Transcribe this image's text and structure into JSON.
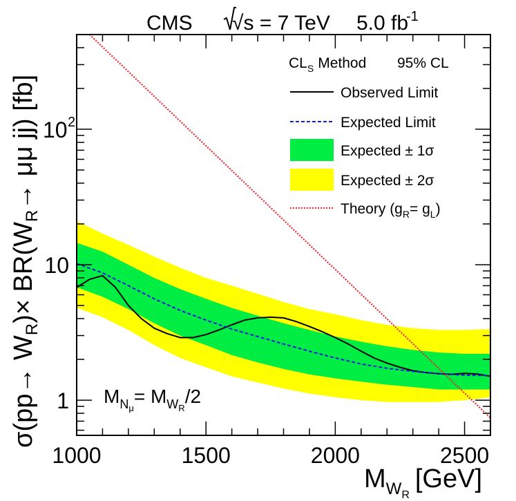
{
  "chart_data": {
    "type": "line",
    "title": {
      "experiment": "CMS",
      "energy_label": "√s = 7 TeV",
      "lumi_value": "5.0 fb",
      "lumi_exp": "-1"
    },
    "method": {
      "cls": "CL",
      "cls_sub": "S",
      "method_word": "Method",
      "cl": "95% CL"
    },
    "annotation": {
      "m": "M",
      "n": "N",
      "mu": "μ",
      "eq": "= M",
      "w": "W",
      "r": "R",
      "tail": "/2"
    },
    "xlabel": {
      "m": "M",
      "w": "W",
      "r": "R",
      "unit": "[GeV]"
    },
    "ylabel": {
      "p1": "σ(pp→ W",
      "s1": "R",
      "p2": ")× BR(W",
      "s2": "R",
      "p3": "→ μμ jj) [fb]"
    },
    "xlim": [
      1000,
      2600
    ],
    "ylim": [
      0.55,
      500
    ],
    "yscale": "log",
    "xticks": [
      1000,
      1500,
      2000,
      2500
    ],
    "yticks": [
      {
        "value": 1,
        "label": "1"
      },
      {
        "value": 10,
        "label": "10"
      },
      {
        "value": 100,
        "label": "10",
        "exp": "2"
      }
    ],
    "legend": [
      {
        "key": "observed",
        "label": "Observed Limit"
      },
      {
        "key": "expected",
        "label": "Expected Limit"
      },
      {
        "key": "band1",
        "label": "Expected ± 1σ"
      },
      {
        "key": "band2",
        "label": "Expected ± 2σ"
      },
      {
        "key": "theory",
        "label": "Theory (g",
        "sub1": "R",
        "mid": "= g",
        "sub2": "L",
        "end": ")"
      }
    ],
    "series": [
      {
        "name": "Observed Limit",
        "color": "#000000",
        "x": [
          1000,
          1050,
          1100,
          1150,
          1200,
          1250,
          1300,
          1350,
          1400,
          1450,
          1500,
          1550,
          1600,
          1650,
          1700,
          1750,
          1800,
          1850,
          1900,
          1950,
          2000,
          2050,
          2100,
          2150,
          2200,
          2250,
          2300,
          2350,
          2400,
          2450,
          2500,
          2550,
          2600
        ],
        "y": [
          6.8,
          7.8,
          8.3,
          6.8,
          5.0,
          4.0,
          3.4,
          3.1,
          2.9,
          2.9,
          3.05,
          3.3,
          3.6,
          3.9,
          4.05,
          4.1,
          4.05,
          3.8,
          3.5,
          3.2,
          2.9,
          2.6,
          2.3,
          2.05,
          1.88,
          1.75,
          1.65,
          1.6,
          1.57,
          1.55,
          1.58,
          1.56,
          1.5
        ]
      },
      {
        "name": "Expected Limit",
        "color": "#1a1adb",
        "x": [
          1000,
          1100,
          1200,
          1300,
          1400,
          1500,
          1600,
          1700,
          1800,
          1900,
          2000,
          2100,
          2200,
          2300,
          2400,
          2500,
          2600
        ],
        "y": [
          10.2,
          8.7,
          7.0,
          5.6,
          4.6,
          3.9,
          3.35,
          2.95,
          2.6,
          2.3,
          2.05,
          1.85,
          1.72,
          1.63,
          1.57,
          1.53,
          1.52
        ]
      },
      {
        "name": "Theory (gR = gL)",
        "color": "#e8262b",
        "x": [
          1050,
          2600
        ],
        "y": [
          500,
          0.74
        ]
      }
    ],
    "bands": [
      {
        "name": "Expected ± 2σ",
        "color": "#ffff00",
        "x": [
          1000,
          1100,
          1200,
          1300,
          1400,
          1500,
          1600,
          1700,
          1800,
          1900,
          2000,
          2100,
          2200,
          2300,
          2400,
          2500,
          2600
        ],
        "lower": [
          4.8,
          4.1,
          3.3,
          2.55,
          2.05,
          1.75,
          1.5,
          1.35,
          1.22,
          1.12,
          1.05,
          1.0,
          0.97,
          0.97,
          0.97,
          1.0,
          1.05
        ],
        "upper": [
          21,
          17,
          14,
          11.5,
          9.5,
          8.0,
          7.0,
          6.1,
          5.3,
          4.7,
          4.3,
          3.9,
          3.6,
          3.4,
          3.3,
          3.3,
          3.35
        ]
      },
      {
        "name": "Expected ± 1σ",
        "color": "#00ee44",
        "x": [
          1000,
          1100,
          1200,
          1300,
          1400,
          1500,
          1600,
          1700,
          1800,
          1900,
          2000,
          2100,
          2200,
          2300,
          2400,
          2500,
          2600
        ],
        "lower": [
          6.8,
          5.8,
          4.7,
          3.7,
          3.0,
          2.55,
          2.15,
          1.9,
          1.7,
          1.55,
          1.45,
          1.37,
          1.3,
          1.25,
          1.2,
          1.2,
          1.2
        ],
        "upper": [
          14.5,
          12.5,
          10.0,
          8.0,
          6.6,
          5.6,
          4.8,
          4.2,
          3.7,
          3.3,
          2.95,
          2.7,
          2.5,
          2.35,
          2.25,
          2.2,
          2.2
        ]
      }
    ]
  }
}
